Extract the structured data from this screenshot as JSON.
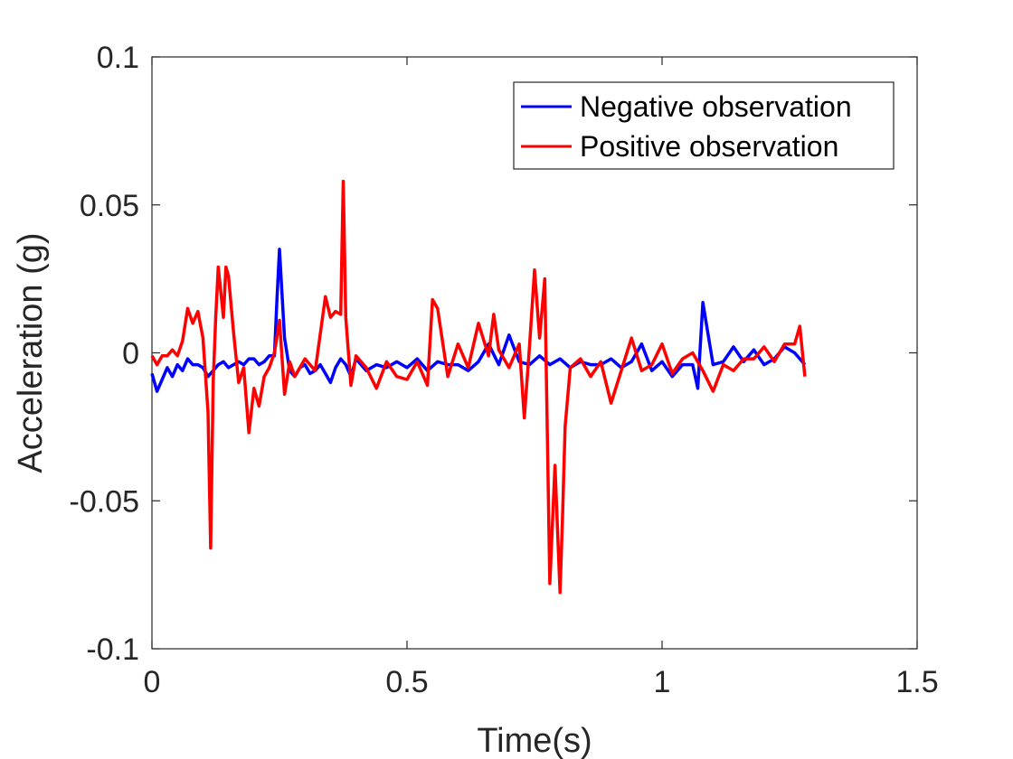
{
  "chart_data": {
    "type": "line",
    "title": "",
    "xlabel": "Time(s)",
    "ylabel": "Acceleration (g)",
    "xlim": [
      0,
      1.5
    ],
    "ylim": [
      -0.1,
      0.1
    ],
    "xticks": [
      0,
      0.5,
      1,
      1.5
    ],
    "xtick_labels": [
      "0",
      "0.5",
      "1",
      "1.5"
    ],
    "yticks": [
      -0.1,
      -0.05,
      0,
      0.05,
      0.1
    ],
    "ytick_labels": [
      "-0.1",
      "-0.05",
      "0",
      "0.05",
      "0.1"
    ],
    "grid": false,
    "legend_position": "top-right",
    "series": [
      {
        "name": "Negative observation",
        "color": "#0000ff",
        "x": [
          0,
          0.01,
          0.02,
          0.03,
          0.04,
          0.05,
          0.06,
          0.07,
          0.08,
          0.09,
          0.1,
          0.11,
          0.12,
          0.13,
          0.14,
          0.15,
          0.16,
          0.17,
          0.18,
          0.19,
          0.2,
          0.21,
          0.22,
          0.23,
          0.24,
          0.245,
          0.25,
          0.26,
          0.27,
          0.28,
          0.29,
          0.3,
          0.31,
          0.32,
          0.33,
          0.34,
          0.35,
          0.36,
          0.37,
          0.38,
          0.39,
          0.4,
          0.42,
          0.44,
          0.46,
          0.48,
          0.5,
          0.52,
          0.54,
          0.56,
          0.58,
          0.6,
          0.62,
          0.64,
          0.66,
          0.68,
          0.7,
          0.72,
          0.74,
          0.76,
          0.78,
          0.8,
          0.82,
          0.84,
          0.86,
          0.88,
          0.9,
          0.92,
          0.94,
          0.96,
          0.98,
          1.0,
          1.02,
          1.04,
          1.06,
          1.07,
          1.08,
          1.1,
          1.12,
          1.14,
          1.16,
          1.18,
          1.2,
          1.22,
          1.24,
          1.26,
          1.28
        ],
        "y": [
          -0.007,
          -0.013,
          -0.009,
          -0.005,
          -0.008,
          -0.004,
          -0.006,
          -0.002,
          -0.004,
          -0.004,
          -0.005,
          -0.008,
          -0.006,
          -0.004,
          -0.003,
          -0.005,
          -0.004,
          -0.003,
          -0.004,
          -0.002,
          -0.002,
          -0.004,
          -0.003,
          -0.001,
          -0.001,
          0.018,
          0.035,
          0.005,
          -0.006,
          -0.008,
          -0.005,
          -0.004,
          -0.007,
          -0.006,
          -0.004,
          -0.007,
          -0.01,
          -0.005,
          -0.002,
          -0.004,
          -0.008,
          -0.002,
          -0.006,
          -0.004,
          -0.005,
          -0.003,
          -0.005,
          -0.002,
          -0.006,
          -0.003,
          -0.004,
          -0.004,
          -0.006,
          -0.003,
          0.003,
          -0.004,
          0.006,
          -0.003,
          -0.004,
          -0.001,
          -0.004,
          -0.002,
          -0.005,
          -0.003,
          -0.004,
          -0.004,
          -0.002,
          -0.005,
          -0.003,
          0.003,
          -0.006,
          -0.003,
          -0.008,
          -0.004,
          -0.004,
          -0.012,
          0.017,
          -0.004,
          -0.003,
          0.002,
          -0.003,
          0.001,
          -0.004,
          -0.002,
          0.002,
          0.0,
          -0.004
        ]
      },
      {
        "name": "Positive observation",
        "color": "#ff0000",
        "x": [
          0,
          0.01,
          0.02,
          0.03,
          0.04,
          0.05,
          0.06,
          0.07,
          0.08,
          0.09,
          0.1,
          0.11,
          0.115,
          0.12,
          0.125,
          0.13,
          0.14,
          0.145,
          0.15,
          0.16,
          0.17,
          0.18,
          0.19,
          0.2,
          0.21,
          0.22,
          0.23,
          0.24,
          0.25,
          0.26,
          0.27,
          0.28,
          0.3,
          0.32,
          0.34,
          0.35,
          0.36,
          0.37,
          0.375,
          0.38,
          0.39,
          0.4,
          0.42,
          0.44,
          0.46,
          0.48,
          0.5,
          0.52,
          0.54,
          0.55,
          0.56,
          0.58,
          0.6,
          0.62,
          0.64,
          0.66,
          0.67,
          0.68,
          0.7,
          0.72,
          0.73,
          0.74,
          0.75,
          0.76,
          0.77,
          0.78,
          0.79,
          0.8,
          0.805,
          0.81,
          0.82,
          0.84,
          0.86,
          0.88,
          0.9,
          0.92,
          0.94,
          0.96,
          0.98,
          1.0,
          1.02,
          1.04,
          1.06,
          1.08,
          1.1,
          1.12,
          1.14,
          1.16,
          1.18,
          1.2,
          1.22,
          1.24,
          1.26,
          1.27,
          1.28
        ],
        "y": [
          -0.001,
          -0.004,
          -0.001,
          -0.001,
          0.001,
          -0.001,
          0.004,
          0.015,
          0.01,
          0.014,
          0.005,
          -0.02,
          -0.066,
          -0.01,
          0.012,
          0.029,
          0.012,
          0.029,
          0.026,
          0.007,
          -0.01,
          -0.005,
          -0.027,
          -0.012,
          -0.018,
          -0.008,
          -0.005,
          0.0,
          0.011,
          -0.014,
          -0.003,
          -0.008,
          -0.002,
          -0.006,
          0.019,
          0.012,
          0.014,
          0.013,
          0.058,
          0.012,
          -0.011,
          -0.001,
          -0.005,
          -0.012,
          -0.003,
          -0.008,
          -0.009,
          -0.003,
          -0.011,
          0.018,
          0.015,
          -0.008,
          0.003,
          -0.005,
          0.01,
          -0.001,
          0.013,
          0.001,
          -0.005,
          0.003,
          -0.022,
          0.002,
          0.028,
          0.005,
          0.025,
          -0.078,
          -0.038,
          -0.081,
          -0.055,
          -0.025,
          -0.005,
          -0.002,
          -0.008,
          -0.003,
          -0.017,
          -0.006,
          0.005,
          -0.006,
          -0.004,
          0.003,
          -0.007,
          -0.002,
          0.0,
          -0.006,
          -0.013,
          -0.004,
          -0.006,
          -0.002,
          -0.002,
          0.002,
          -0.003,
          0.003,
          0.003,
          0.009,
          -0.008
        ]
      }
    ]
  }
}
